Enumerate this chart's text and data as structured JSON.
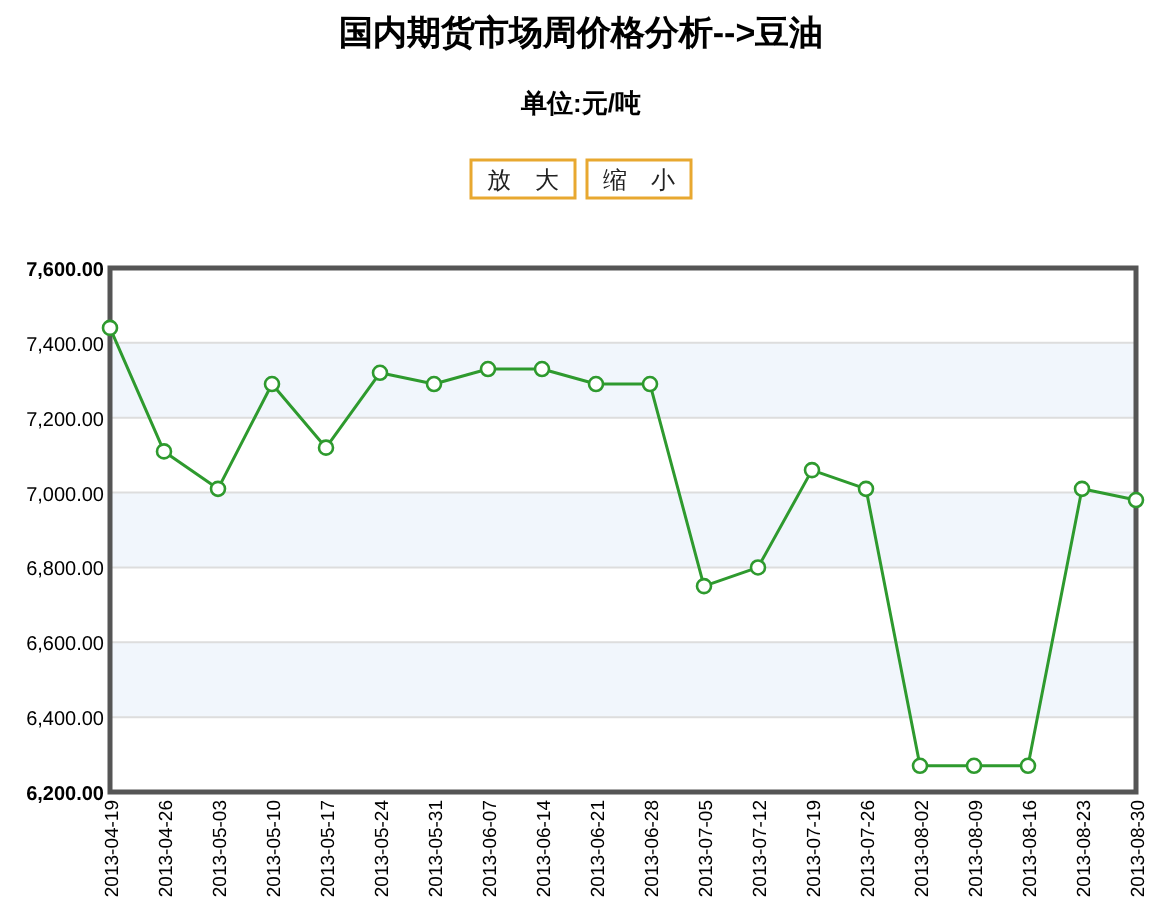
{
  "chart_data": {
    "type": "line",
    "title": "国内期货市场周价格分析-->豆油",
    "subtitle": "单位:元/吨",
    "annotations": [
      "放　大",
      "缩　小"
    ],
    "categories": [
      "2013-04-19",
      "2013-04-26",
      "2013-05-03",
      "2013-05-10",
      "2013-05-17",
      "2013-05-24",
      "2013-05-31",
      "2013-06-07",
      "2013-06-14",
      "2013-06-21",
      "2013-06-28",
      "2013-07-05",
      "2013-07-12",
      "2013-07-19",
      "2013-07-26",
      "2013-08-02",
      "2013-08-09",
      "2013-08-16",
      "2013-08-23",
      "2013-08-30"
    ],
    "series": [
      {
        "color": "#2e9a2e",
        "values": [
          7440,
          7110,
          7010,
          7290,
          7120,
          7320,
          7290,
          7330,
          7330,
          7290,
          7290,
          6750,
          6800,
          7060,
          7010,
          6270,
          6270,
          6270,
          7010,
          6980
        ]
      }
    ],
    "ylim": [
      6200,
      7600
    ],
    "yticks": [
      {
        "value": 6200,
        "label": "6,200.00"
      },
      {
        "value": 6400,
        "label": "6,400.00"
      },
      {
        "value": 6600,
        "label": "6,600.00"
      },
      {
        "value": 6800,
        "label": "6,800.00"
      },
      {
        "value": 7000,
        "label": "7,000.00"
      },
      {
        "value": 7200,
        "label": "7,200.00"
      },
      {
        "value": 7400,
        "label": "7,400.00"
      },
      {
        "value": 7600,
        "label": "7,600.00"
      }
    ],
    "bands": [
      {
        "axis": "y",
        "from": 7200,
        "to": 7400,
        "color": "#f1f6fc"
      },
      {
        "axis": "y",
        "from": 6800,
        "to": 7000,
        "color": "#f1f6fc"
      },
      {
        "axis": "y",
        "from": 6400,
        "to": 6600,
        "color": "#f1f6fc"
      }
    ],
    "grid": "y",
    "marker": "circle",
    "line_style": "solid"
  }
}
